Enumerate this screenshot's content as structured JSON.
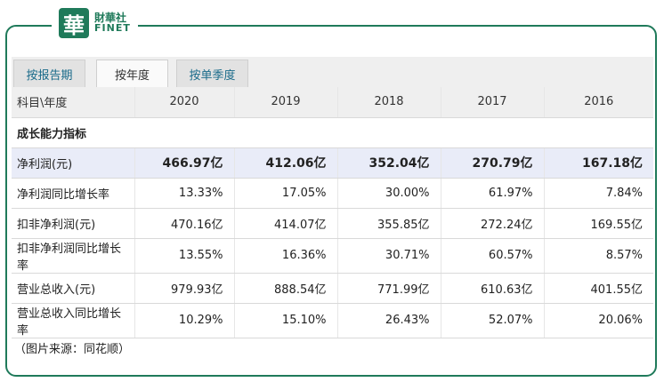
{
  "logo": {
    "mark": "華",
    "cn": "財華社",
    "en": "FINET"
  },
  "tabs": [
    "按报告期",
    "按年度",
    "按单季度"
  ],
  "active_tab": 1,
  "table": {
    "header": [
      "科目\\年度",
      "2020",
      "2019",
      "2018",
      "2017",
      "2016"
    ],
    "section_title": "成长能力指标",
    "rows": [
      {
        "label": "净利润(元)",
        "values": [
          "466.97亿",
          "412.06亿",
          "352.04亿",
          "270.79亿",
          "167.18亿"
        ],
        "highlight": true
      },
      {
        "label": "净利润同比增长率",
        "values": [
          "13.33%",
          "17.05%",
          "30.00%",
          "61.97%",
          "7.84%"
        ]
      },
      {
        "label": "扣非净利润(元)",
        "values": [
          "470.16亿",
          "414.07亿",
          "355.85亿",
          "272.24亿",
          "169.55亿"
        ]
      },
      {
        "label": "扣非净利润同比增长率",
        "values": [
          "13.55%",
          "16.36%",
          "30.71%",
          "60.57%",
          "8.57%"
        ]
      },
      {
        "label": "营业总收入(元)",
        "values": [
          "979.93亿",
          "888.54亿",
          "771.99亿",
          "610.63亿",
          "401.55亿"
        ]
      },
      {
        "label": "营业总收入同比增长率",
        "values": [
          "10.29%",
          "15.10%",
          "26.43%",
          "52.07%",
          "20.06%"
        ]
      }
    ]
  },
  "source": "（图片来源：同花顺）"
}
